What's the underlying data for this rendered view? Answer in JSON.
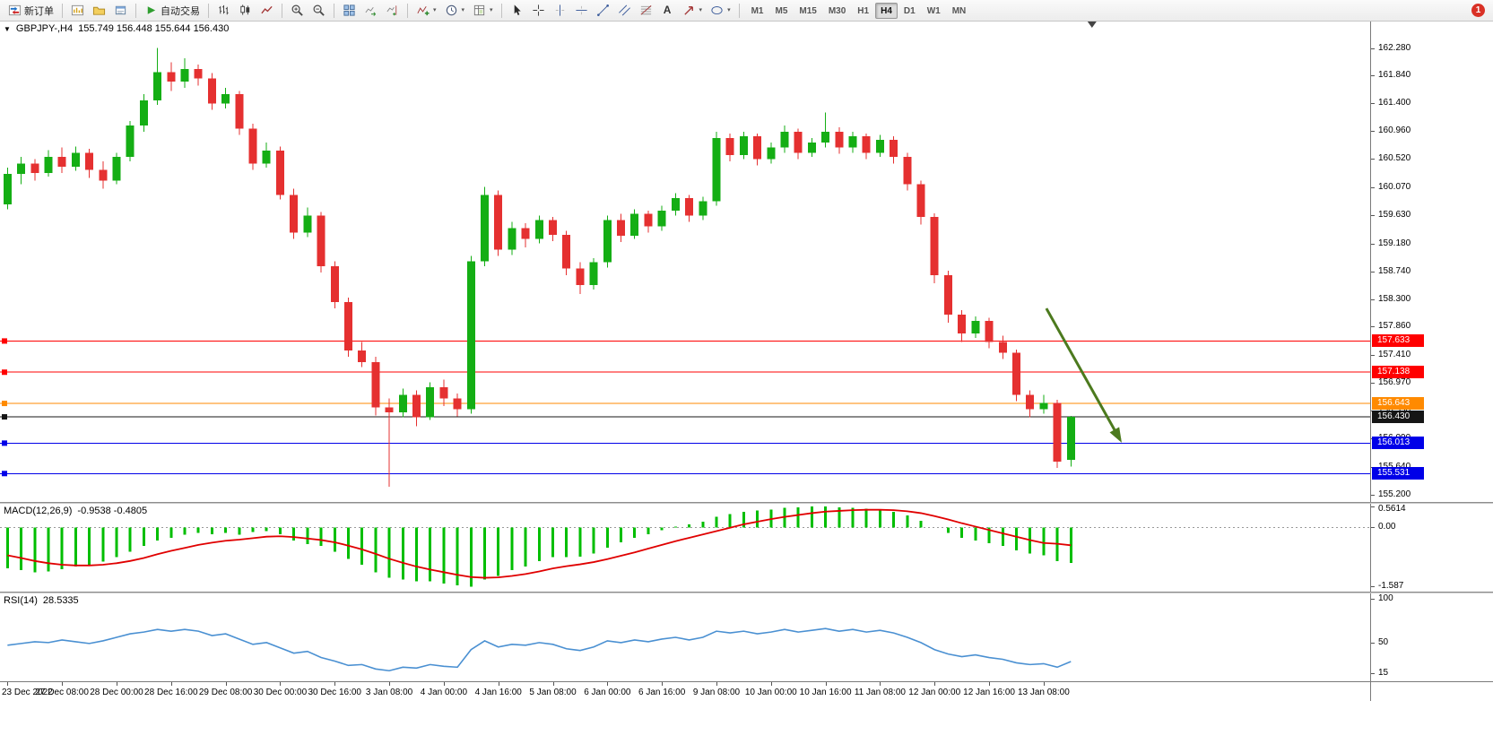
{
  "toolbar": {
    "new_order_label": "新订单",
    "autotrading_label": "自动交易",
    "timeframes": [
      "M1",
      "M5",
      "M15",
      "M30",
      "H1",
      "H4",
      "D1",
      "W1",
      "MN"
    ],
    "active_timeframe": "H4",
    "notification_count": "1"
  },
  "icons": {
    "caret_glyph": "▾",
    "text_tool_glyph": "A",
    "one_click_glyph": "▼"
  },
  "chart_header": {
    "symbol": "GBPJPY-,H4",
    "ohlc": "155.749 156.448 155.644 156.430"
  },
  "indicators": {
    "macd": {
      "name": "MACD(12,26,9)",
      "values_text": "-0.9538 -0.4805"
    },
    "rsi": {
      "name": "RSI(14)",
      "value_text": "28.5335"
    }
  },
  "chart_data": [
    {
      "type": "candlestick",
      "title": "GBPJPY-,H4",
      "ylim": [
        155.08,
        162.7
      ],
      "y_ticks": [
        "162.280",
        "161.840",
        "161.400",
        "160.960",
        "160.520",
        "160.070",
        "159.630",
        "159.180",
        "158.740",
        "158.300",
        "157.860",
        "157.410",
        "156.970",
        "156.530",
        "156.090",
        "155.640",
        "155.200"
      ],
      "x_labels": [
        "23 Dec 2022",
        "27 Dec 08:00",
        "28 Dec 00:00",
        "28 Dec 16:00",
        "29 Dec 08:00",
        "30 Dec 00:00",
        "30 Dec 16:00",
        "3 Jan 08:00",
        "4 Jan 00:00",
        "4 Jan 16:00",
        "5 Jan 08:00",
        "6 Jan 00:00",
        "6 Jan 16:00",
        "9 Jan 08:00",
        "10 Jan 00:00",
        "10 Jan 16:00",
        "11 Jan 08:00",
        "12 Jan 00:00",
        "12 Jan 16:00",
        "13 Jan 08:00"
      ],
      "x_label_step": 4,
      "visible_slots": 100.5,
      "bull_color": "#14AE14",
      "bear_color": "#E53030",
      "grid": false,
      "current_price": {
        "value": 156.43,
        "label": "156.430",
        "color": "#151515"
      },
      "hlines": [
        {
          "price": 157.633,
          "label": "157.633",
          "color": "#FF0000"
        },
        {
          "price": 157.138,
          "label": "157.138",
          "color": "#FF0000"
        },
        {
          "price": 156.643,
          "label": "156.643",
          "color": "#FF8A00"
        },
        {
          "price": 156.013,
          "label": "156.013",
          "color": "#0000E8"
        },
        {
          "price": 155.531,
          "label": "155.531",
          "color": "#0000E8"
        }
      ],
      "arrow": {
        "from_index": 76.2,
        "from_price": 158.15,
        "to_index": 81.6,
        "to_price": 156.07,
        "color": "#4C7A1E"
      },
      "shift_marker_frac": 0.797,
      "candles": [
        [
          159.8,
          160.38,
          159.72,
          160.28
        ],
        [
          160.28,
          160.55,
          160.12,
          160.45
        ],
        [
          160.45,
          160.52,
          160.18,
          160.3
        ],
        [
          160.3,
          160.66,
          160.24,
          160.55
        ],
        [
          160.55,
          160.7,
          160.3,
          160.4
        ],
        [
          160.4,
          160.72,
          160.33,
          160.62
        ],
        [
          160.62,
          160.68,
          160.22,
          160.35
        ],
        [
          160.35,
          160.48,
          160.05,
          160.18
        ],
        [
          160.18,
          160.62,
          160.12,
          160.55
        ],
        [
          160.55,
          161.12,
          160.48,
          161.05
        ],
        [
          161.05,
          161.55,
          160.95,
          161.45
        ],
        [
          161.45,
          162.28,
          161.38,
          161.9
        ],
        [
          161.9,
          162.05,
          161.6,
          161.75
        ],
        [
          161.75,
          162.12,
          161.65,
          161.95
        ],
        [
          161.95,
          162.02,
          161.68,
          161.8
        ],
        [
          161.8,
          161.88,
          161.3,
          161.4
        ],
        [
          161.4,
          161.65,
          161.32,
          161.55
        ],
        [
          161.55,
          161.6,
          160.9,
          161.0
        ],
        [
          161.0,
          161.08,
          160.35,
          160.45
        ],
        [
          160.45,
          160.78,
          160.38,
          160.65
        ],
        [
          160.65,
          160.72,
          159.88,
          159.95
        ],
        [
          159.95,
          160.05,
          159.25,
          159.35
        ],
        [
          159.35,
          159.75,
          159.28,
          159.62
        ],
        [
          159.62,
          159.68,
          158.72,
          158.82
        ],
        [
          158.82,
          158.9,
          158.15,
          158.25
        ],
        [
          158.25,
          158.32,
          157.38,
          157.48
        ],
        [
          157.48,
          157.62,
          157.22,
          157.3
        ],
        [
          157.3,
          157.38,
          156.45,
          156.58
        ],
        [
          156.58,
          156.72,
          155.32,
          156.5
        ],
        [
          156.5,
          156.88,
          156.42,
          156.78
        ],
        [
          156.78,
          156.85,
          156.28,
          156.42
        ],
        [
          156.42,
          156.98,
          156.38,
          156.9
        ],
        [
          156.9,
          157.02,
          156.6,
          156.72
        ],
        [
          156.72,
          156.8,
          156.44,
          156.55
        ],
        [
          156.55,
          158.98,
          156.48,
          158.9
        ],
        [
          158.9,
          160.08,
          158.82,
          159.95
        ],
        [
          159.95,
          160.02,
          158.98,
          159.08
        ],
        [
          159.08,
          159.52,
          159.0,
          159.42
        ],
        [
          159.42,
          159.5,
          159.12,
          159.25
        ],
        [
          159.25,
          159.62,
          159.18,
          159.55
        ],
        [
          159.55,
          159.6,
          159.22,
          159.32
        ],
        [
          159.32,
          159.38,
          158.68,
          158.78
        ],
        [
          158.78,
          158.88,
          158.38,
          158.52
        ],
        [
          158.52,
          158.95,
          158.45,
          158.88
        ],
        [
          158.88,
          159.62,
          158.8,
          159.55
        ],
        [
          159.55,
          159.65,
          159.2,
          159.3
        ],
        [
          159.3,
          159.72,
          159.25,
          159.65
        ],
        [
          159.65,
          159.7,
          159.35,
          159.45
        ],
        [
          159.45,
          159.78,
          159.38,
          159.7
        ],
        [
          159.7,
          159.98,
          159.62,
          159.9
        ],
        [
          159.9,
          159.95,
          159.52,
          159.62
        ],
        [
          159.62,
          159.92,
          159.55,
          159.85
        ],
        [
          159.85,
          160.95,
          159.78,
          160.85
        ],
        [
          160.85,
          160.92,
          160.48,
          160.58
        ],
        [
          160.58,
          160.95,
          160.52,
          160.88
        ],
        [
          160.88,
          160.92,
          160.42,
          160.52
        ],
        [
          160.52,
          160.78,
          160.45,
          160.7
        ],
        [
          160.7,
          161.05,
          160.62,
          160.95
        ],
        [
          160.95,
          161.0,
          160.52,
          160.62
        ],
        [
          160.62,
          160.85,
          160.55,
          160.78
        ],
        [
          160.78,
          161.26,
          160.7,
          160.95
        ],
        [
          160.95,
          161.02,
          160.6,
          160.7
        ],
        [
          160.7,
          160.95,
          160.62,
          160.88
        ],
        [
          160.88,
          160.92,
          160.52,
          160.62
        ],
        [
          160.62,
          160.9,
          160.55,
          160.82
        ],
        [
          160.82,
          160.88,
          160.45,
          160.55
        ],
        [
          160.55,
          160.62,
          160.02,
          160.12
        ],
        [
          160.12,
          160.18,
          159.48,
          159.6
        ],
        [
          159.6,
          159.66,
          158.55,
          158.68
        ],
        [
          158.68,
          158.75,
          157.92,
          158.05
        ],
        [
          158.05,
          158.12,
          157.62,
          157.75
        ],
        [
          157.75,
          158.02,
          157.68,
          157.95
        ],
        [
          157.95,
          158.0,
          157.52,
          157.62
        ],
        [
          157.62,
          157.72,
          157.35,
          157.45
        ],
        [
          157.45,
          157.5,
          156.68,
          156.78
        ],
        [
          156.78,
          156.85,
          156.42,
          156.55
        ],
        [
          156.55,
          156.78,
          156.48,
          156.65
        ],
        [
          156.65,
          156.7,
          155.62,
          155.72
        ],
        [
          155.749,
          156.448,
          155.644,
          156.43
        ]
      ]
    },
    {
      "type": "bar",
      "name": "MACD(12,26,9)",
      "ylim": [
        -1.72,
        0.63
      ],
      "y_ticks": [
        "0.5614",
        "0.00",
        "-1.587"
      ],
      "bar_color": "#00BE00",
      "signal_color": "#E00000",
      "values": [
        -1.1,
        -1.15,
        -1.2,
        -1.18,
        -1.12,
        -1.05,
        -1.0,
        -0.92,
        -0.8,
        -0.65,
        -0.5,
        -0.35,
        -0.28,
        -0.2,
        -0.15,
        -0.18,
        -0.15,
        -0.2,
        -0.12,
        -0.1,
        -0.18,
        -0.35,
        -0.45,
        -0.5,
        -0.65,
        -0.85,
        -1.0,
        -1.2,
        -1.35,
        -1.4,
        -1.45,
        -1.45,
        -1.5,
        -1.55,
        -1.587,
        -1.4,
        -1.3,
        -1.15,
        -1.05,
        -0.9,
        -0.8,
        -0.8,
        -0.78,
        -0.7,
        -0.55,
        -0.4,
        -0.28,
        -0.18,
        -0.08,
        0.02,
        0.08,
        0.15,
        0.28,
        0.35,
        0.42,
        0.45,
        0.48,
        0.52,
        0.54,
        0.5614,
        0.56,
        0.54,
        0.52,
        0.5,
        0.48,
        0.42,
        0.32,
        0.18,
        0.0,
        -0.15,
        -0.28,
        -0.35,
        -0.42,
        -0.5,
        -0.62,
        -0.7,
        -0.75,
        -0.9,
        -0.9538
      ],
      "signal": [
        -0.75,
        -0.82,
        -0.9,
        -0.96,
        -1.0,
        -1.02,
        -1.02,
        -1.0,
        -0.96,
        -0.9,
        -0.82,
        -0.72,
        -0.63,
        -0.55,
        -0.47,
        -0.41,
        -0.36,
        -0.33,
        -0.29,
        -0.25,
        -0.24,
        -0.26,
        -0.3,
        -0.34,
        -0.4,
        -0.49,
        -0.59,
        -0.71,
        -0.84,
        -0.95,
        -1.05,
        -1.13,
        -1.2,
        -1.27,
        -1.33,
        -1.35,
        -1.34,
        -1.3,
        -1.25,
        -1.18,
        -1.1,
        -1.04,
        -0.99,
        -0.93,
        -0.85,
        -0.76,
        -0.67,
        -0.57,
        -0.47,
        -0.37,
        -0.28,
        -0.19,
        -0.1,
        -0.01,
        0.08,
        0.15,
        0.22,
        0.28,
        0.33,
        0.38,
        0.42,
        0.44,
        0.46,
        0.47,
        0.47,
        0.46,
        0.43,
        0.38,
        0.3,
        0.21,
        0.11,
        0.02,
        -0.07,
        -0.16,
        -0.25,
        -0.34,
        -0.42,
        -0.44,
        -0.4805
      ]
    },
    {
      "type": "line",
      "name": "RSI(14)",
      "ylim": [
        6,
        106
      ],
      "y_ticks": [
        "100",
        "50",
        "15"
      ],
      "line_color": "#4A90D2",
      "values": [
        47,
        49,
        51,
        50,
        53,
        51,
        49,
        52,
        56,
        60,
        62,
        65,
        63,
        65,
        63,
        58,
        60,
        54,
        48,
        50,
        44,
        38,
        40,
        33,
        29,
        24,
        25,
        20,
        18,
        22,
        21,
        25,
        23,
        22,
        42,
        52,
        45,
        48,
        47,
        50,
        48,
        43,
        41,
        45,
        52,
        50,
        53,
        51,
        54,
        56,
        53,
        56,
        63,
        61,
        63,
        60,
        62,
        65,
        62,
        64,
        66,
        63,
        65,
        62,
        64,
        61,
        56,
        50,
        42,
        37,
        34,
        36,
        33,
        31,
        27,
        25,
        26,
        22,
        28.5
      ]
    }
  ]
}
